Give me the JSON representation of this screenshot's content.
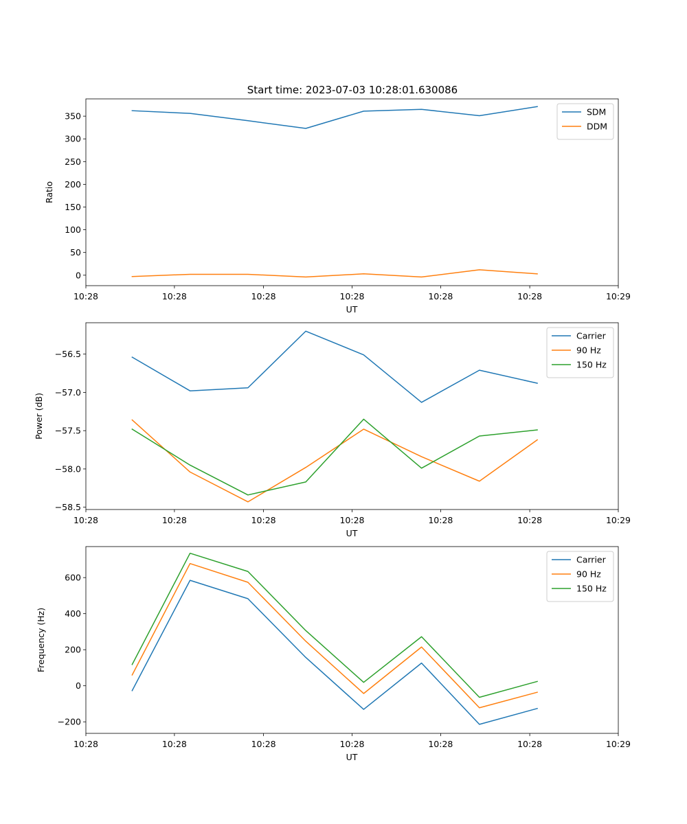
{
  "figure": {
    "title": "Start time: 2023-07-03 10:28:01.630086"
  },
  "chart_data": [
    {
      "type": "line",
      "title": "Start time: 2023-07-03 10:28:01.630086",
      "xlabel": "UT",
      "ylabel": "Ratio",
      "x": [
        1,
        2,
        3,
        4,
        5,
        6,
        7,
        8
      ],
      "xlim": [
        0.2,
        9.4
      ],
      "xticks": [
        0.2,
        1.73,
        3.27,
        4.8,
        6.33,
        7.87,
        9.4
      ],
      "xtick_labels": [
        "10:28",
        "10:28",
        "10:28",
        "10:28",
        "10:28",
        "10:28",
        "10:29"
      ],
      "ylim": [
        -23,
        388
      ],
      "yticks": [
        0,
        50,
        100,
        150,
        200,
        250,
        300,
        350
      ],
      "ytick_labels": [
        "0",
        "50",
        "100",
        "150",
        "200",
        "250",
        "300",
        "350"
      ],
      "legend": "upper right",
      "series": [
        {
          "name": "SDM",
          "color": "#1f77b4",
          "values": [
            362,
            356,
            340,
            323,
            361,
            365,
            351,
            371
          ]
        },
        {
          "name": "DDM",
          "color": "#ff7f0e",
          "values": [
            -3,
            2,
            2,
            -4,
            3,
            -4,
            12,
            3
          ]
        }
      ]
    },
    {
      "type": "line",
      "title": "",
      "xlabel": "UT",
      "ylabel": "Power (dB)",
      "x": [
        1,
        2,
        3,
        4,
        5,
        6,
        7,
        8
      ],
      "xlim": [
        0.2,
        9.4
      ],
      "xticks": [
        0.2,
        1.73,
        3.27,
        4.8,
        6.33,
        7.87,
        9.4
      ],
      "xtick_labels": [
        "10:28",
        "10:28",
        "10:28",
        "10:28",
        "10:28",
        "10:28",
        "10:29"
      ],
      "ylim": [
        -58.53,
        -56.09
      ],
      "yticks": [
        -58.5,
        -58.0,
        -57.5,
        -57.0,
        -56.5
      ],
      "ytick_labels": [
        "−58.5",
        "−58.0",
        "−57.5",
        "−57.0",
        "−56.5"
      ],
      "legend": "upper right",
      "series": [
        {
          "name": "Carrier",
          "color": "#1f77b4",
          "values": [
            -56.54,
            -56.98,
            -56.94,
            -56.2,
            -56.51,
            -57.13,
            -56.71,
            -56.88
          ]
        },
        {
          "name": "90 Hz",
          "color": "#ff7f0e",
          "values": [
            -57.36,
            -58.04,
            -58.43,
            -57.98,
            -57.48,
            -57.84,
            -58.16,
            -57.62
          ]
        },
        {
          "name": "150 Hz",
          "color": "#2ca02c",
          "values": [
            -57.48,
            -57.95,
            -58.34,
            -58.17,
            -57.35,
            -57.99,
            -57.57,
            -57.49
          ]
        }
      ]
    },
    {
      "type": "line",
      "title": "",
      "xlabel": "UT",
      "ylabel": "Frequency (Hz)",
      "x": [
        1,
        2,
        3,
        4,
        5,
        6,
        7,
        8
      ],
      "xlim": [
        0.2,
        9.4
      ],
      "xticks": [
        0.2,
        1.73,
        3.27,
        4.8,
        6.33,
        7.87,
        9.4
      ],
      "xtick_labels": [
        "10:28",
        "10:28",
        "10:28",
        "10:28",
        "10:28",
        "10:28",
        "10:29"
      ],
      "ylim": [
        -264,
        772
      ],
      "yticks": [
        -200,
        0,
        200,
        400,
        600
      ],
      "ytick_labels": [
        "−200",
        "0",
        "200",
        "400",
        "600"
      ],
      "legend": "upper right",
      "series": [
        {
          "name": "Carrier",
          "color": "#1f77b4",
          "values": [
            -27,
            585,
            483,
            157,
            -131,
            126,
            -214,
            -126
          ]
        },
        {
          "name": "90 Hz",
          "color": "#ff7f0e",
          "values": [
            60,
            678,
            574,
            247,
            -43,
            215,
            -122,
            -36
          ]
        },
        {
          "name": "150 Hz",
          "color": "#2ca02c",
          "values": [
            118,
            735,
            634,
            306,
            19,
            272,
            -64,
            24
          ]
        }
      ]
    }
  ]
}
